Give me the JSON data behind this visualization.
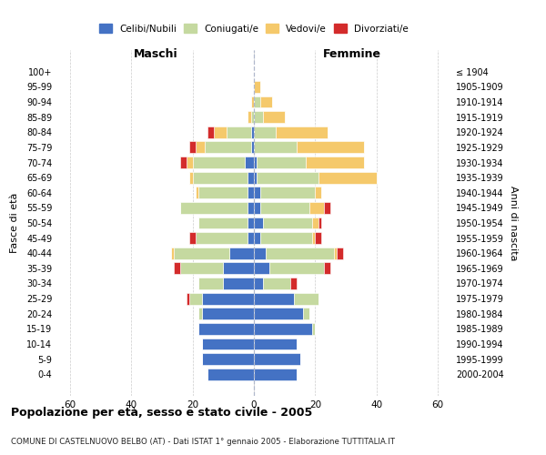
{
  "age_groups": [
    "0-4",
    "5-9",
    "10-14",
    "15-19",
    "20-24",
    "25-29",
    "30-34",
    "35-39",
    "40-44",
    "45-49",
    "50-54",
    "55-59",
    "60-64",
    "65-69",
    "70-74",
    "75-79",
    "80-84",
    "85-89",
    "90-94",
    "95-99",
    "100+"
  ],
  "birth_years": [
    "2000-2004",
    "1995-1999",
    "1990-1994",
    "1985-1989",
    "1980-1984",
    "1975-1979",
    "1970-1974",
    "1965-1969",
    "1960-1964",
    "1955-1959",
    "1950-1954",
    "1945-1949",
    "1940-1944",
    "1935-1939",
    "1930-1934",
    "1925-1929",
    "1920-1924",
    "1915-1919",
    "1910-1914",
    "1905-1909",
    "≤ 1904"
  ],
  "male": {
    "celibi": [
      15,
      17,
      17,
      18,
      17,
      17,
      10,
      10,
      8,
      2,
      2,
      2,
      2,
      2,
      3,
      1,
      1,
      0,
      0,
      0,
      0
    ],
    "coniugati": [
      0,
      0,
      0,
      0,
      1,
      4,
      8,
      14,
      18,
      17,
      16,
      22,
      16,
      18,
      17,
      15,
      8,
      1,
      0,
      0,
      0
    ],
    "vedovi": [
      0,
      0,
      0,
      0,
      0,
      0,
      0,
      0,
      1,
      0,
      0,
      0,
      1,
      1,
      2,
      3,
      4,
      1,
      1,
      0,
      0
    ],
    "divorziati": [
      0,
      0,
      0,
      0,
      0,
      1,
      0,
      2,
      0,
      2,
      0,
      0,
      0,
      0,
      2,
      2,
      2,
      0,
      0,
      0,
      0
    ]
  },
  "female": {
    "nubili": [
      14,
      15,
      14,
      19,
      16,
      13,
      3,
      5,
      4,
      2,
      3,
      2,
      2,
      1,
      1,
      0,
      0,
      0,
      0,
      0,
      0
    ],
    "coniugate": [
      0,
      0,
      0,
      1,
      2,
      8,
      9,
      18,
      22,
      17,
      16,
      16,
      18,
      20,
      16,
      14,
      7,
      3,
      2,
      0,
      0
    ],
    "vedove": [
      0,
      0,
      0,
      0,
      0,
      0,
      0,
      0,
      1,
      1,
      2,
      5,
      2,
      19,
      19,
      22,
      17,
      7,
      4,
      2,
      0
    ],
    "divorziate": [
      0,
      0,
      0,
      0,
      0,
      0,
      2,
      2,
      2,
      2,
      1,
      2,
      0,
      0,
      0,
      0,
      0,
      0,
      0,
      0,
      0
    ]
  },
  "color_celibi": "#4472c4",
  "color_coniugati": "#c5d9a0",
  "color_vedovi": "#f5c96b",
  "color_divorziati": "#d32b2b",
  "title": "Popolazione per età, sesso e stato civile - 2005",
  "subtitle": "COMUNE DI CASTELNUOVO BELBO (AT) - Dati ISTAT 1° gennaio 2005 - Elaborazione TUTTITALIA.IT",
  "xlabel_left": "Maschi",
  "xlabel_right": "Femmine",
  "ylabel_left": "Fasce di età",
  "ylabel_right": "Anni di nascita",
  "xlim": 65
}
